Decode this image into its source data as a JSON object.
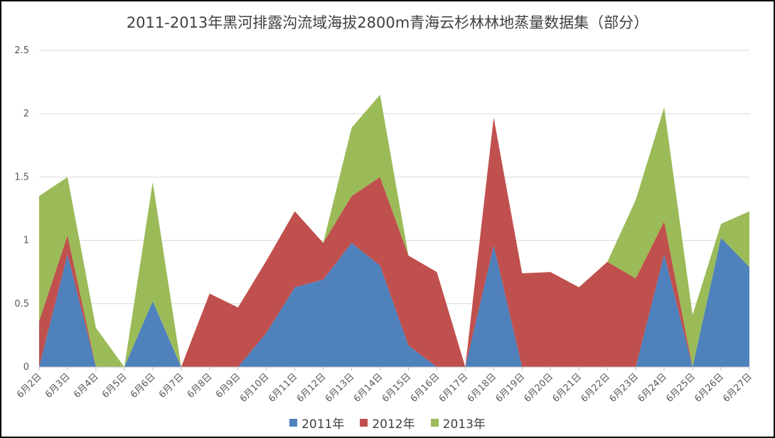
{
  "chart_data": {
    "type": "area",
    "stacked": true,
    "title": "2011-2013年黑河排露沟流域海拔2800m青海云杉林林地蒸量数据集（部分）",
    "xlabel": "",
    "ylabel": "",
    "ylim": [
      0,
      2.5
    ],
    "yticks": [
      "0",
      "0.5",
      "1",
      "1.5",
      "2",
      "2.5"
    ],
    "grid": true,
    "legend_position": "bottom",
    "categories": [
      "6月2日",
      "6月3日",
      "6月4日",
      "6月5日",
      "6月6日",
      "6月7日",
      "6月8日",
      "6月9日",
      "6月10日",
      "6月11日",
      "6月12日",
      "6月13日",
      "6月14日",
      "6月15日",
      "6月16日",
      "6月17日",
      "6月18日",
      "6月19日",
      "6月20日",
      "6月21日",
      "6月22日",
      "6月23日",
      "6月24日",
      "6月25日",
      "6月26日",
      "6月27日"
    ],
    "series": [
      {
        "name": "2011年",
        "color": "#4f81bd",
        "values": [
          0,
          0.89,
          0,
          0,
          0.52,
          0,
          0,
          0,
          0.27,
          0.63,
          0.69,
          0.98,
          0.8,
          0.17,
          0,
          0,
          0.96,
          0,
          0,
          0,
          0,
          0,
          0.89,
          0,
          1.02,
          0.79
        ]
      },
      {
        "name": "2012年",
        "color": "#c0504d",
        "values": [
          0.36,
          0.15,
          0,
          0,
          0,
          0,
          0.58,
          0.47,
          0.57,
          0.6,
          0.29,
          0.37,
          0.7,
          0.71,
          0.75,
          0,
          1.01,
          0.74,
          0.75,
          0.63,
          0.83,
          0.7,
          0.26,
          0,
          0,
          0
        ]
      },
      {
        "name": "2013年",
        "color": "#9bbb59",
        "values": [
          0.99,
          0.46,
          0.31,
          0,
          0.94,
          0,
          0,
          0,
          0,
          0,
          0,
          0.54,
          0.65,
          0,
          0,
          0,
          0,
          0,
          0,
          0,
          0,
          0.62,
          0.9,
          0.41,
          0.11,
          0.44
        ]
      }
    ]
  }
}
